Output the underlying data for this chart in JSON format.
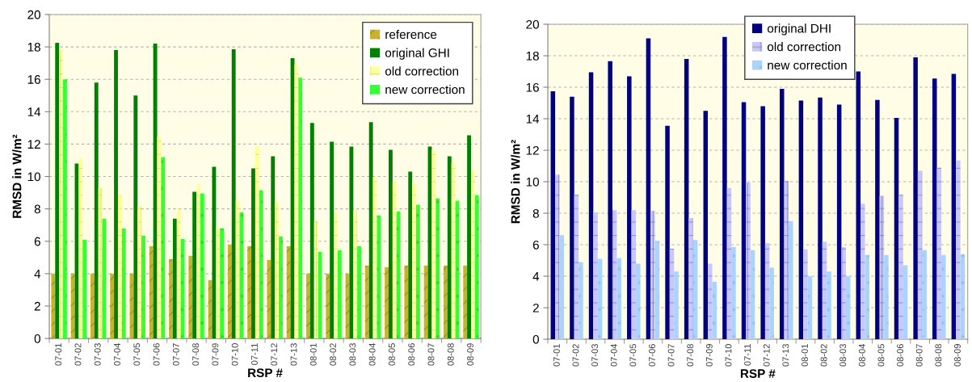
{
  "chart_data": [
    {
      "type": "bar",
      "xlabel": "RSP #",
      "ylabel": "RMSD in W/m²",
      "categories": [
        "07-01",
        "07-02",
        "07-03",
        "07-04",
        "07-05",
        "07-06",
        "07-07",
        "07-08",
        "07-09",
        "07-10",
        "07-11",
        "07-12",
        "07-13",
        "08-01",
        "08-02",
        "08-03",
        "08-04",
        "08-05",
        "08-06",
        "08-07",
        "08-08",
        "08-09"
      ],
      "series": [
        {
          "name": "reference",
          "color": "#c8b428",
          "values": [
            4.0,
            4.0,
            4.0,
            4.0,
            4.0,
            5.7,
            4.9,
            5.1,
            3.6,
            5.8,
            5.7,
            4.85,
            5.7,
            4.0,
            4.0,
            4.0,
            4.5,
            4.4,
            4.5,
            4.5,
            4.5,
            4.5
          ]
        },
        {
          "name": "original GHI",
          "color": "#008000",
          "values": [
            18.25,
            10.8,
            15.8,
            17.8,
            15.0,
            18.2,
            7.4,
            9.05,
            10.6,
            17.85,
            10.5,
            11.25,
            17.3,
            13.3,
            12.15,
            11.85,
            13.35,
            11.65,
            10.3,
            11.85,
            11.25,
            12.55
          ]
        },
        {
          "name": "old correction",
          "color": "#ffff99",
          "values": [
            17.8,
            11.1,
            9.3,
            8.85,
            8.15,
            12.45,
            8.0,
            9.55,
            6.85,
            8.5,
            11.85,
            8.4,
            16.9,
            7.25,
            7.8,
            7.9,
            9.95,
            9.65,
            9.55,
            11.6,
            10.85,
            10.4
          ]
        },
        {
          "name": "new correction",
          "color": "#33ff33",
          "values": [
            16.0,
            6.1,
            7.4,
            6.8,
            6.35,
            11.2,
            6.15,
            8.95,
            6.8,
            7.8,
            9.15,
            6.3,
            16.1,
            5.35,
            5.45,
            5.7,
            7.6,
            7.85,
            8.25,
            8.65,
            8.5,
            8.85
          ]
        }
      ],
      "ylim": [
        0,
        20
      ],
      "yticks": [
        0,
        2,
        4,
        6,
        8,
        10,
        12,
        14,
        16,
        18,
        20
      ],
      "grid": "y",
      "legend": "top right"
    },
    {
      "type": "bar",
      "xlabel": "RSP #",
      "ylabel": "RMSD in W/m²",
      "categories": [
        "07-01",
        "07-02",
        "07-03",
        "07-04",
        "07-05",
        "07-06",
        "07-07",
        "07-08",
        "07-09",
        "07-10",
        "07-11",
        "07-12",
        "07-13",
        "08-01",
        "08-02",
        "08-03",
        "08-04",
        "08-05",
        "08-06",
        "08-07",
        "08-08",
        "08-09"
      ],
      "series": [
        {
          "name": "original DHI",
          "color": "#000080",
          "values": [
            15.75,
            15.4,
            16.95,
            17.65,
            16.7,
            19.1,
            13.55,
            17.8,
            14.5,
            19.2,
            15.05,
            14.8,
            15.9,
            15.15,
            15.35,
            14.9,
            17.0,
            15.2,
            14.05,
            17.9,
            16.55,
            16.85
          ]
        },
        {
          "name": "old correction",
          "color": "#c8c8ff",
          "values": [
            10.45,
            9.2,
            8.05,
            8.2,
            8.2,
            8.15,
            5.75,
            7.7,
            4.8,
            9.6,
            9.95,
            6.1,
            10.05,
            5.7,
            6.2,
            5.85,
            8.6,
            9.1,
            9.2,
            10.7,
            10.9,
            11.35
          ]
        },
        {
          "name": "new correction",
          "color": "#a8d4ff",
          "values": [
            6.6,
            4.9,
            5.1,
            5.15,
            4.8,
            6.25,
            4.3,
            6.3,
            3.65,
            5.85,
            5.65,
            4.55,
            7.5,
            4.0,
            4.3,
            4.0,
            5.35,
            5.35,
            4.7,
            5.65,
            5.35,
            5.4
          ]
        }
      ],
      "ylim": [
        0,
        20
      ],
      "yticks": [
        0,
        2,
        4,
        6,
        8,
        10,
        12,
        14,
        16,
        18,
        20
      ],
      "grid": "y",
      "legend": "top"
    }
  ]
}
